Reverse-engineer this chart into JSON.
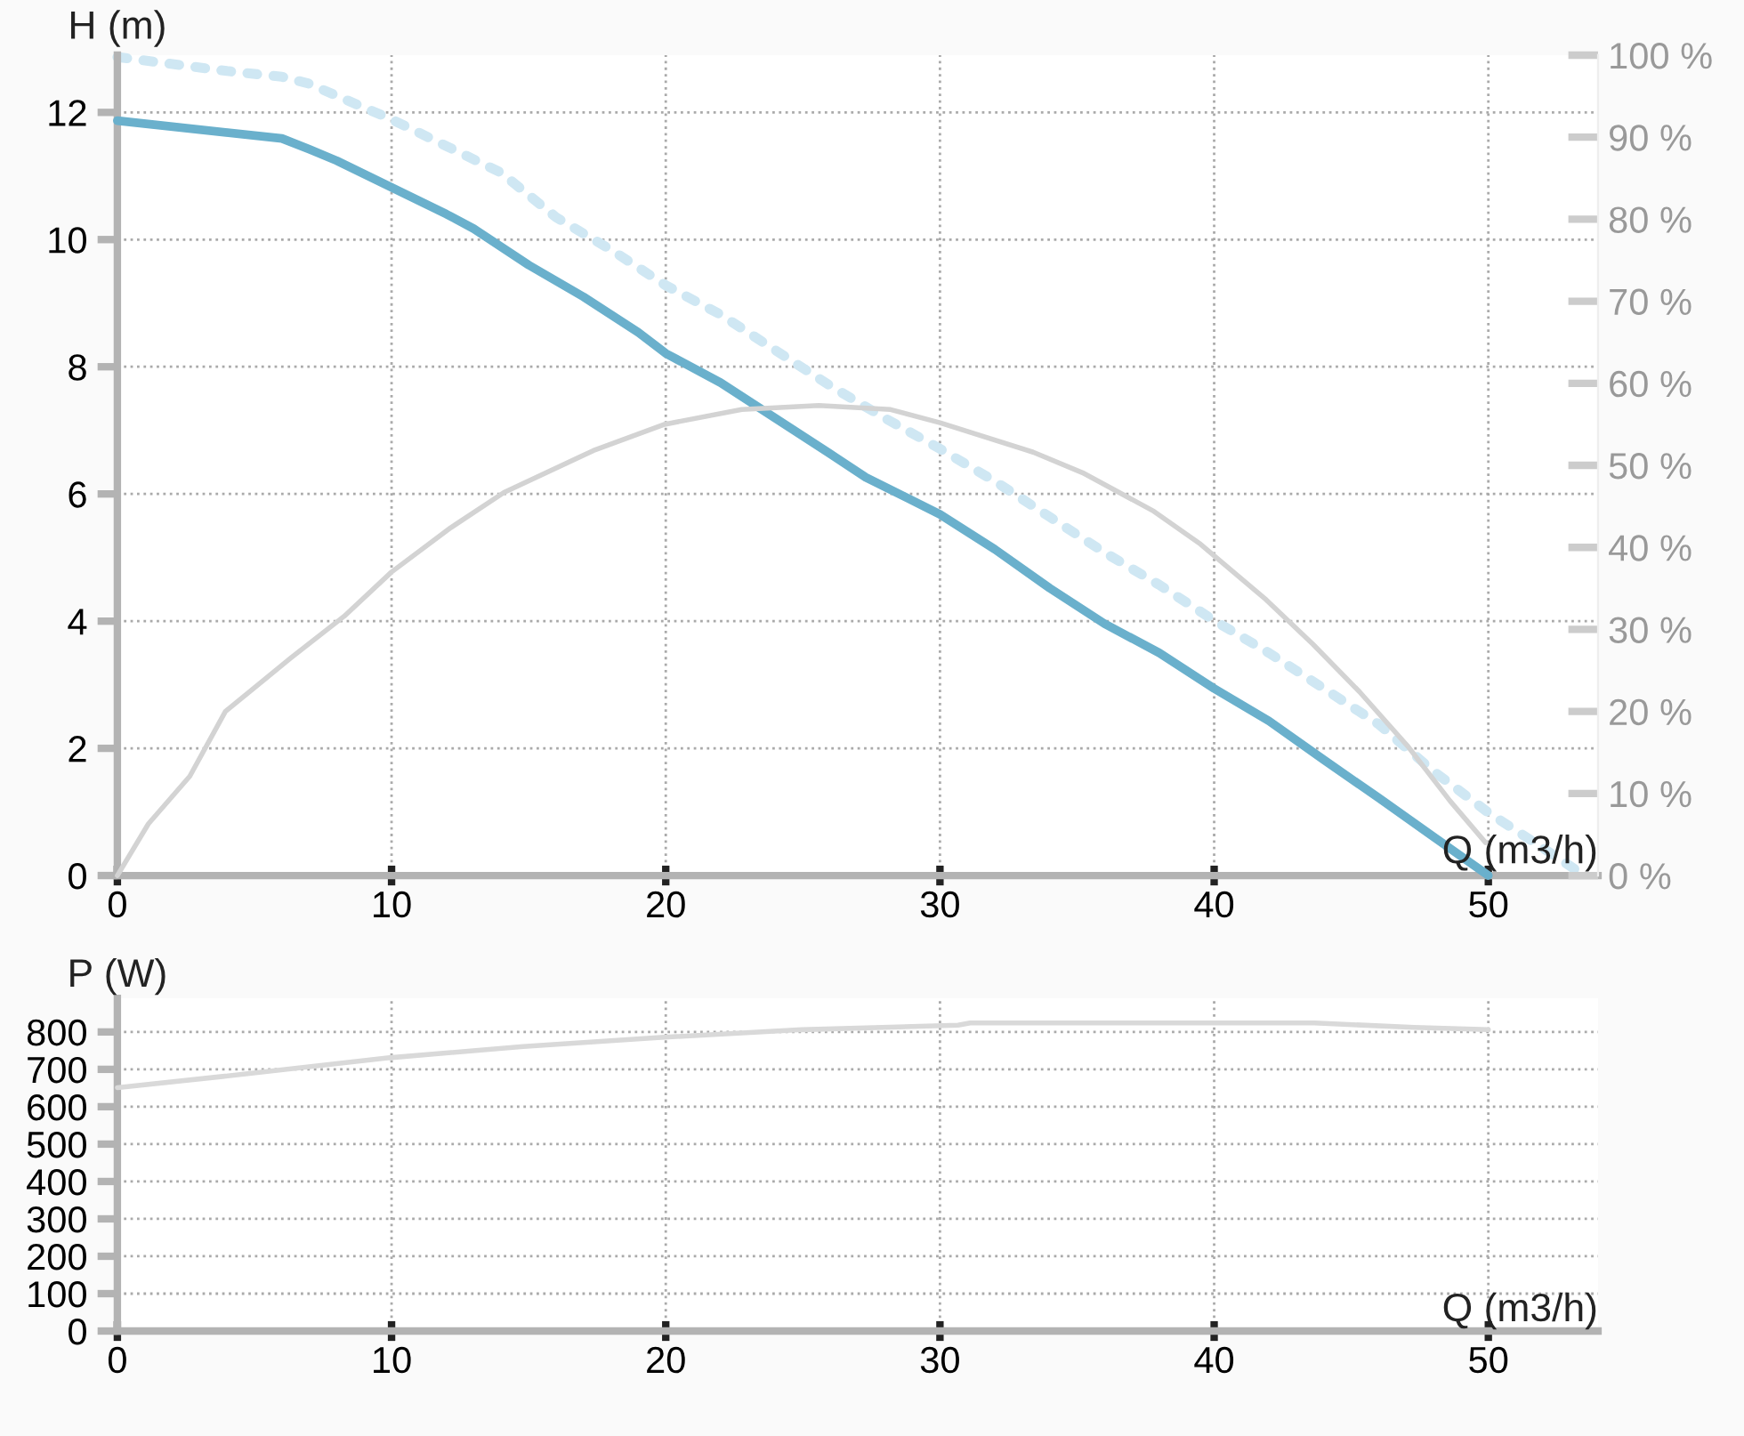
{
  "chart_data": [
    {
      "type": "line",
      "ylabel": "H (m)",
      "xlabel": "Q (m3/h)",
      "xlim": [
        0,
        54
      ],
      "xticks": [
        0,
        10,
        20,
        30,
        40,
        50
      ],
      "ylim": [
        0,
        12.9
      ],
      "yticks": [
        0,
        2,
        4,
        6,
        8,
        10,
        12
      ],
      "y2lim": [
        0,
        100
      ],
      "y2ticks": [
        {
          "value": 0,
          "label": "0 %"
        },
        {
          "value": 10,
          "label": "10 %"
        },
        {
          "value": 20,
          "label": "20 %"
        },
        {
          "value": 30,
          "label": "30 %"
        },
        {
          "value": 40,
          "label": "40 %"
        },
        {
          "value": 50,
          "label": "50 %"
        },
        {
          "value": 60,
          "label": "60 %"
        },
        {
          "value": 70,
          "label": "70 %"
        },
        {
          "value": 80,
          "label": "80 %"
        },
        {
          "value": 90,
          "label": "90 %"
        },
        {
          "value": 100,
          "label": "100 %"
        }
      ],
      "grid": true,
      "legend": false,
      "series": [
        {
          "color": "#d3d3d3",
          "axis": "y2",
          "line_style": "solid",
          "x": [
            0,
            1.13,
            2.64,
            3.94,
            6.32,
            8.27,
            10,
            12.16,
            14.1,
            17.36,
            19.96,
            22.77,
            25.58,
            28.2,
            30,
            33.4,
            35.2,
            37.8,
            39.5,
            41.9,
            43.6,
            45.3,
            47.1,
            48.6,
            49.9
          ],
          "values": [
            0,
            6.3,
            12.1,
            20.0,
            26.5,
            31.6,
            37.0,
            42.4,
            46.7,
            51.8,
            55.0,
            56.8,
            57.3,
            56.8,
            55.2,
            51.6,
            49.1,
            44.4,
            40.4,
            33.6,
            28.2,
            22.4,
            15.6,
            9.1,
            4.0
          ]
        },
        {
          "color": "#cfe7f3",
          "line_style": "dotted",
          "x": [
            0,
            4,
            6,
            7,
            8,
            10,
            12,
            14,
            16,
            18,
            20,
            22,
            24,
            26,
            28,
            30,
            32,
            34,
            36,
            38,
            40,
            42,
            44,
            46,
            48,
            50,
            52,
            53.5
          ],
          "values": [
            12.87,
            12.65,
            12.56,
            12.45,
            12.26,
            11.89,
            11.47,
            11.05,
            10.35,
            9.84,
            9.28,
            8.82,
            8.26,
            7.7,
            7.19,
            6.71,
            6.2,
            5.64,
            5.08,
            4.57,
            4.01,
            3.5,
            2.94,
            2.38,
            1.64,
            0.99,
            0.43,
            0
          ]
        },
        {
          "color": "#6ab0cc",
          "line_style": "solid",
          "x": [
            0,
            6,
            7,
            8,
            10,
            12,
            13,
            15,
            17,
            19,
            20,
            22,
            24,
            26,
            27.3,
            30,
            32,
            34,
            36,
            38,
            40,
            42,
            44,
            46,
            48,
            50
          ],
          "values": [
            11.87,
            11.59,
            11.42,
            11.24,
            10.82,
            10.4,
            10.17,
            9.6,
            9.1,
            8.54,
            8.21,
            7.75,
            7.19,
            6.63,
            6.26,
            5.68,
            5.13,
            4.52,
            3.96,
            3.5,
            2.94,
            2.43,
            1.82,
            1.22,
            0.61,
            0
          ]
        }
      ]
    },
    {
      "type": "line",
      "ylabel": "P (W)",
      "xlabel": "Q (m3/h)",
      "xlim": [
        0,
        54
      ],
      "xticks": [
        0,
        10,
        20,
        30,
        40,
        50
      ],
      "ylim": [
        0,
        890
      ],
      "yticks": [
        0,
        100,
        200,
        300,
        400,
        500,
        600,
        700,
        800
      ],
      "grid": true,
      "legend": false,
      "series": [
        {
          "color": "#d9d9d9",
          "line_style": "solid",
          "x": [
            0,
            3.84,
            9.93,
            14.8,
            19.7,
            24.96,
            30.66,
            31.1,
            43.66,
            47.3,
            50
          ],
          "values": [
            651,
            681,
            731,
            761,
            785,
            806,
            818,
            824,
            824,
            812,
            806
          ]
        }
      ]
    }
  ]
}
